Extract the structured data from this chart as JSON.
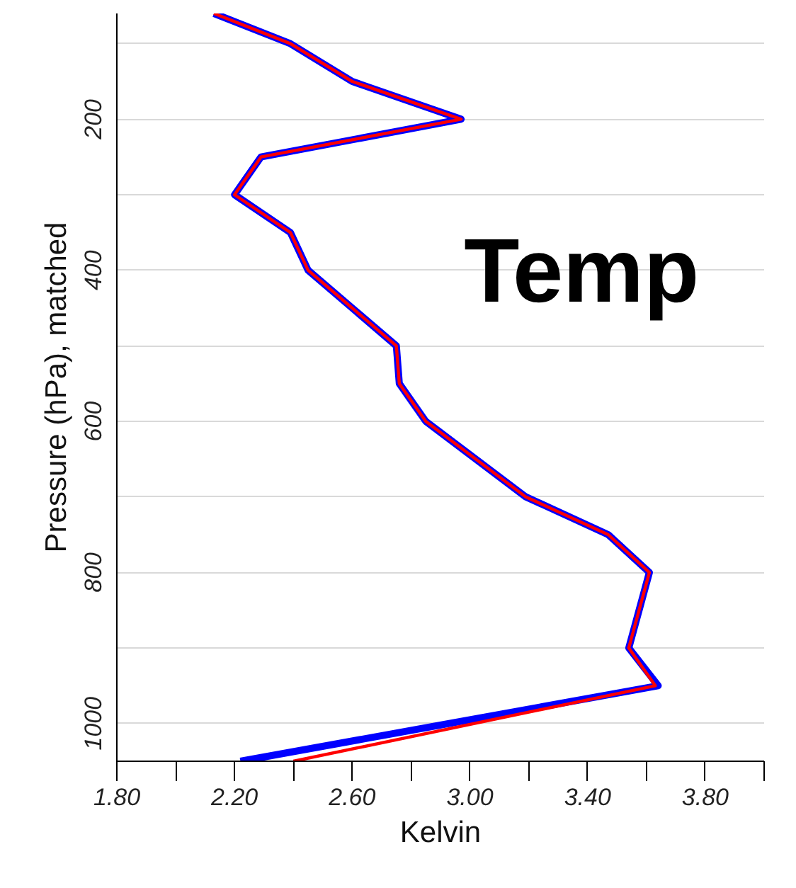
{
  "chart_data": {
    "type": "line",
    "xlabel": "Kelvin",
    "ylabel": "Pressure (hPa), matched",
    "annotations": [
      "Temp"
    ],
    "series": [
      {
        "color": "#0000ff",
        "x": [
          2.13,
          2.39,
          2.6,
          2.97,
          2.29,
          2.2,
          2.39,
          2.45,
          2.6,
          2.75,
          2.76,
          2.85,
          3.19,
          3.47,
          3.61,
          3.54,
          3.64,
          2.22
        ],
        "values": [
          60,
          100,
          150,
          200,
          250,
          300,
          350,
          400,
          450,
          500,
          550,
          600,
          700,
          750,
          800,
          900,
          950,
          1050
        ]
      },
      {
        "color": "#ff0000",
        "x": [
          2.13,
          2.39,
          2.6,
          2.97,
          2.29,
          2.2,
          2.39,
          2.45,
          2.6,
          2.75,
          2.76,
          2.85,
          3.19,
          3.47,
          3.61,
          3.54,
          3.63,
          2.4
        ],
        "values": [
          60,
          100,
          150,
          200,
          250,
          300,
          350,
          400,
          450,
          500,
          550,
          600,
          700,
          750,
          800,
          900,
          950,
          1050
        ]
      }
    ],
    "xlim": [
      1.8,
      4.0
    ],
    "xticks": [
      {
        "value": 1.8,
        "label": "1.80"
      },
      {
        "value": 2.0,
        "label": null
      },
      {
        "value": 2.2,
        "label": "2.20"
      },
      {
        "value": 2.4,
        "label": null
      },
      {
        "value": 2.6,
        "label": "2.60"
      },
      {
        "value": 2.8,
        "label": null
      },
      {
        "value": 3.0,
        "label": "3.00"
      },
      {
        "value": 3.2,
        "label": null
      },
      {
        "value": 3.4,
        "label": "3.40"
      },
      {
        "value": 3.6,
        "label": null
      },
      {
        "value": 3.8,
        "label": "3.80"
      },
      {
        "value": 4.0,
        "label": null
      }
    ],
    "ylim": [
      1050,
      60
    ],
    "yticks": [
      {
        "value": 100,
        "label": null
      },
      200,
      {
        "value": 300,
        "label": null
      },
      400,
      {
        "value": 500,
        "label": null
      },
      600,
      {
        "value": 700,
        "label": null
      },
      800,
      {
        "value": 900,
        "label": null
      },
      1000
    ],
    "grid": "y",
    "marker": "none",
    "line_style": "solid"
  }
}
